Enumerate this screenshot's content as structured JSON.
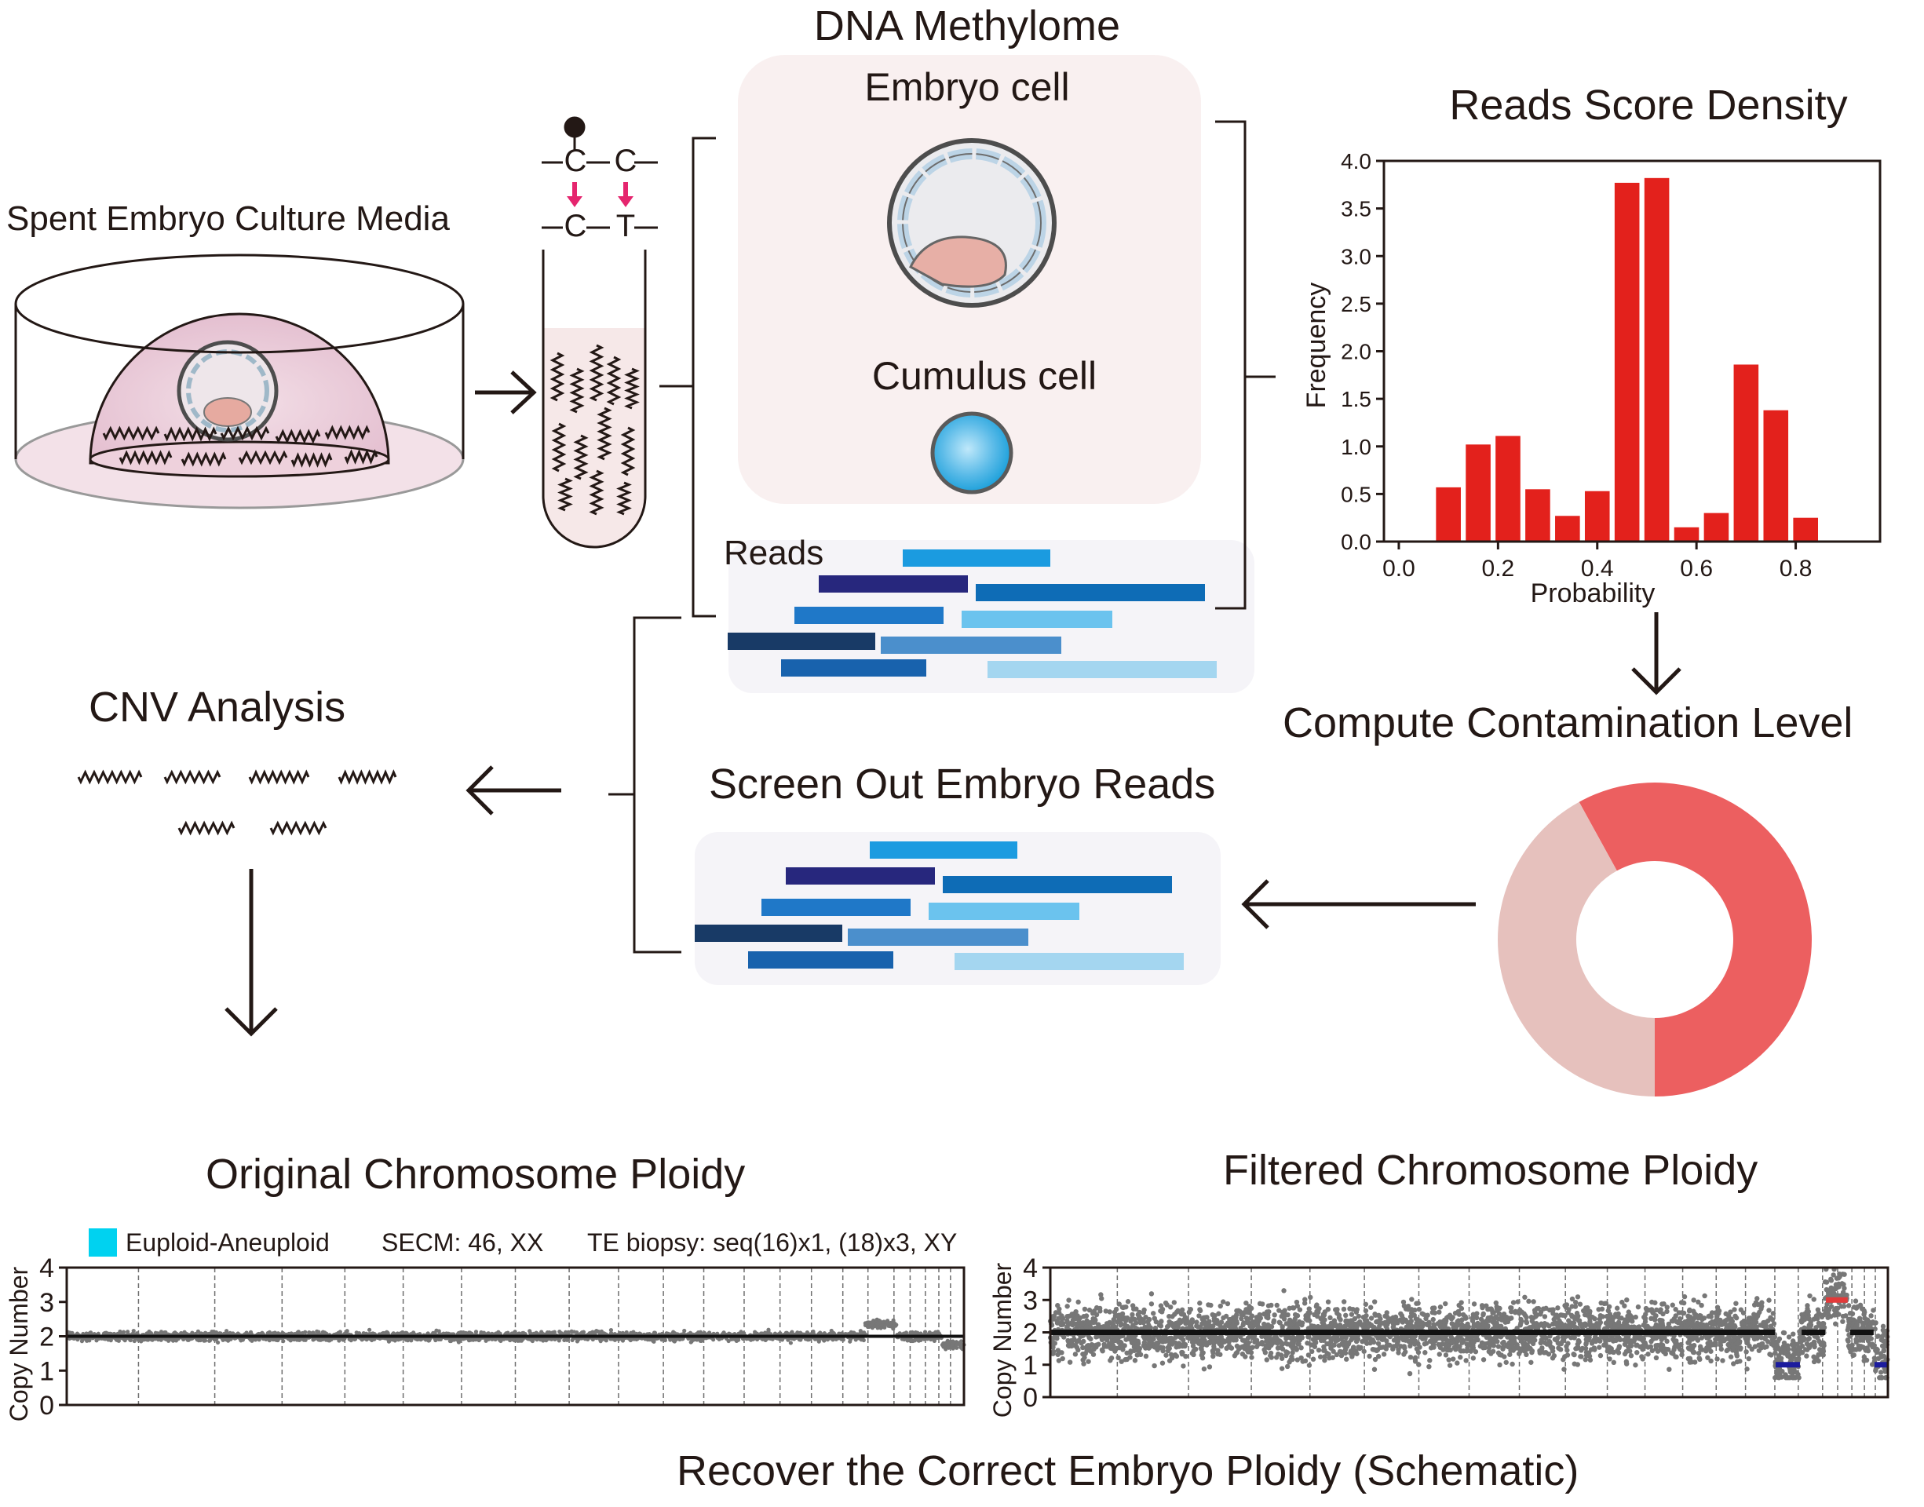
{
  "titles": {
    "dna_methylome": "DNA Methylome",
    "embryo_cell": "Embryo cell",
    "cumulus_cell": "Cumulus cell",
    "reads": "Reads",
    "spent_media": "Spent Embryo Culture Media",
    "reads_score_density": "Reads Score Density",
    "compute_contamination": "Compute Contamination Level",
    "cnv_analysis": "CNV Analysis",
    "screen_out": "Screen Out Embryo Reads",
    "original_ploidy": "Original Chromosome Ploidy",
    "filtered_ploidy": "Filtered Chromosome Ploidy",
    "recover": "Recover the Correct Embryo Ploidy (Schematic)"
  },
  "bisulfite": {
    "top": [
      "C",
      "C"
    ],
    "bottom": [
      "C",
      "T"
    ]
  },
  "legend": {
    "swatch_label": "Euploid-Aneuploid",
    "secm": "SECM: 46, XX",
    "te_biopsy": "TE biopsy: seq(16)x1, (18)x3, XY",
    "swatch_color": "#00d2f0"
  },
  "colors": {
    "bar": "#e3211c",
    "donut_major": "#ec5f60",
    "donut_minor": "#e6c1bd",
    "read_blues": [
      "#1b9be0",
      "#27277d",
      "#0e6cb6",
      "#1f78c8",
      "#6bc3ee",
      "#183a66",
      "#4b8fcc",
      "#1862ad",
      "#a4d6f0"
    ],
    "dots": "#777777",
    "gain": "#e23a3a",
    "loss": "#1c1c9e"
  },
  "chart_data": [
    {
      "type": "bar",
      "title": "Reads Score Density",
      "xlabel": "Probability",
      "ylabel": "Frequency",
      "x_ticks": [
        "0.0",
        "0.2",
        "0.4",
        "0.6",
        "0.8"
      ],
      "y_ticks": [
        "0.0",
        "0.5",
        "1.0",
        "1.5",
        "2.0",
        "2.5",
        "3.0",
        "3.5",
        "4.0"
      ],
      "xlim": [
        -0.03,
        0.97
      ],
      "ylim": [
        0,
        4.0
      ],
      "bar_width": 0.05,
      "x": [
        0.1,
        0.16,
        0.22,
        0.28,
        0.34,
        0.4,
        0.46,
        0.52,
        0.58,
        0.64,
        0.7,
        0.76,
        0.82
      ],
      "values": [
        0.57,
        1.02,
        1.11,
        0.55,
        0.27,
        0.53,
        3.77,
        3.82,
        0.15,
        0.3,
        1.86,
        1.38,
        0.25
      ]
    },
    {
      "type": "pie",
      "values": [
        58,
        42
      ],
      "labels": [
        "",
        ""
      ]
    },
    {
      "type": "scatter",
      "ylabel": "Copy Number",
      "y_ticks": [
        "4",
        "3",
        "2",
        "1",
        "0"
      ],
      "ylim": [
        0,
        4
      ]
    },
    {
      "type": "scatter",
      "ylabel": "Copy Number",
      "y_ticks": [
        "4",
        "3",
        "2",
        "1",
        "0"
      ],
      "ylim": [
        0,
        4
      ],
      "segments": [
        {
          "from": 0.0,
          "to": 0.865,
          "cn": 2.0
        },
        {
          "from": 0.865,
          "to": 0.895,
          "cn": 1.0
        },
        {
          "from": 0.895,
          "to": 0.925,
          "cn": 2.0
        },
        {
          "from": 0.925,
          "to": 0.952,
          "cn": 3.0
        },
        {
          "from": 0.952,
          "to": 0.945,
          "cn": 2.0
        },
        {
          "from": 0.955,
          "to": 1.0,
          "cn": 2.0
        }
      ]
    }
  ]
}
